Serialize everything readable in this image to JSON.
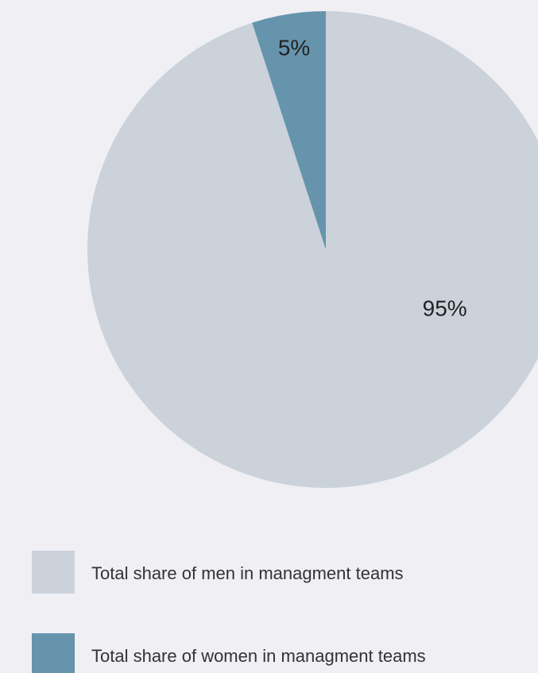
{
  "chart_data": {
    "type": "pie",
    "categories": [
      "Total share of men in managment teams",
      "Total share of women in managment teams"
    ],
    "values": [
      95,
      5
    ],
    "value_labels": [
      "95%",
      "5%"
    ],
    "colors": [
      "#cbd2da",
      "#6694ad"
    ]
  }
}
